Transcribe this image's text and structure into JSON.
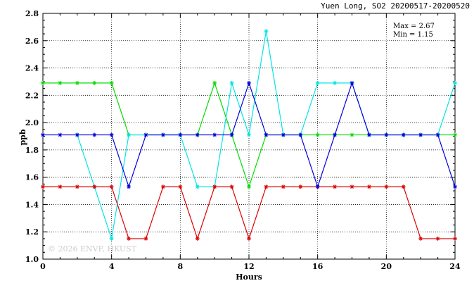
{
  "chart_data": {
    "type": "line",
    "title": "Yuen Long, SO2 20200517-20200520",
    "xlabel": "Hours",
    "ylabel": "ppb",
    "xlim": [
      0,
      24
    ],
    "ylim": [
      1.0,
      2.8
    ],
    "xticks": [
      0,
      4,
      8,
      12,
      16,
      20,
      24
    ],
    "xtick_labels": [
      "0",
      "4",
      "8",
      "12",
      "16",
      "20",
      "24"
    ],
    "yticks": [
      1.0,
      1.2,
      1.4,
      1.6,
      1.8,
      2.0,
      2.2,
      2.4,
      2.6,
      2.8
    ],
    "ytick_labels": [
      "1.0",
      "1.2",
      "1.4",
      "1.6",
      "1.8",
      "2.0",
      "2.2",
      "2.4",
      "2.6",
      "2.8"
    ],
    "grid": true,
    "annotations": {
      "max": "Max = 2.67",
      "min": "Min = 1.15",
      "watermark": "© 2026  ENVF, HKUST"
    },
    "x": [
      0,
      1,
      2,
      3,
      4,
      5,
      6,
      7,
      8,
      9,
      10,
      11,
      12,
      13,
      14,
      15,
      16,
      17,
      18,
      19,
      20,
      21,
      22,
      23,
      24
    ],
    "series": [
      {
        "color": "#00dd00",
        "values": [
          2.29,
          2.29,
          2.29,
          2.29,
          2.29,
          1.91,
          1.91,
          1.91,
          1.91,
          1.91,
          2.29,
          1.91,
          1.53,
          1.91,
          1.91,
          1.91,
          1.91,
          1.91,
          1.91,
          1.91,
          1.91,
          1.91,
          1.91,
          1.91,
          1.91
        ]
      },
      {
        "color": "#00e5e5",
        "values": [
          null,
          null,
          1.91,
          1.53,
          1.15,
          1.91,
          1.91,
          1.91,
          1.91,
          1.53,
          1.53,
          2.29,
          1.91,
          2.67,
          1.91,
          1.91,
          2.29,
          2.29,
          2.29,
          1.91,
          1.91,
          1.91,
          1.91,
          1.91,
          2.29
        ]
      },
      {
        "color": "#dd0000",
        "values": [
          1.53,
          1.53,
          1.53,
          1.53,
          1.53,
          1.15,
          1.15,
          1.53,
          1.53,
          1.15,
          1.53,
          1.53,
          1.15,
          1.53,
          1.53,
          1.53,
          1.53,
          1.53,
          1.53,
          1.53,
          1.53,
          1.53,
          1.15,
          1.15,
          1.15
        ]
      },
      {
        "color": "#0000dd",
        "values": [
          1.91,
          1.91,
          1.91,
          1.91,
          1.91,
          1.53,
          1.91,
          1.91,
          1.91,
          1.91,
          1.91,
          1.91,
          2.29,
          1.91,
          1.91,
          1.91,
          1.53,
          1.91,
          2.29,
          1.91,
          1.91,
          1.91,
          1.91,
          1.91,
          1.53
        ]
      }
    ]
  }
}
